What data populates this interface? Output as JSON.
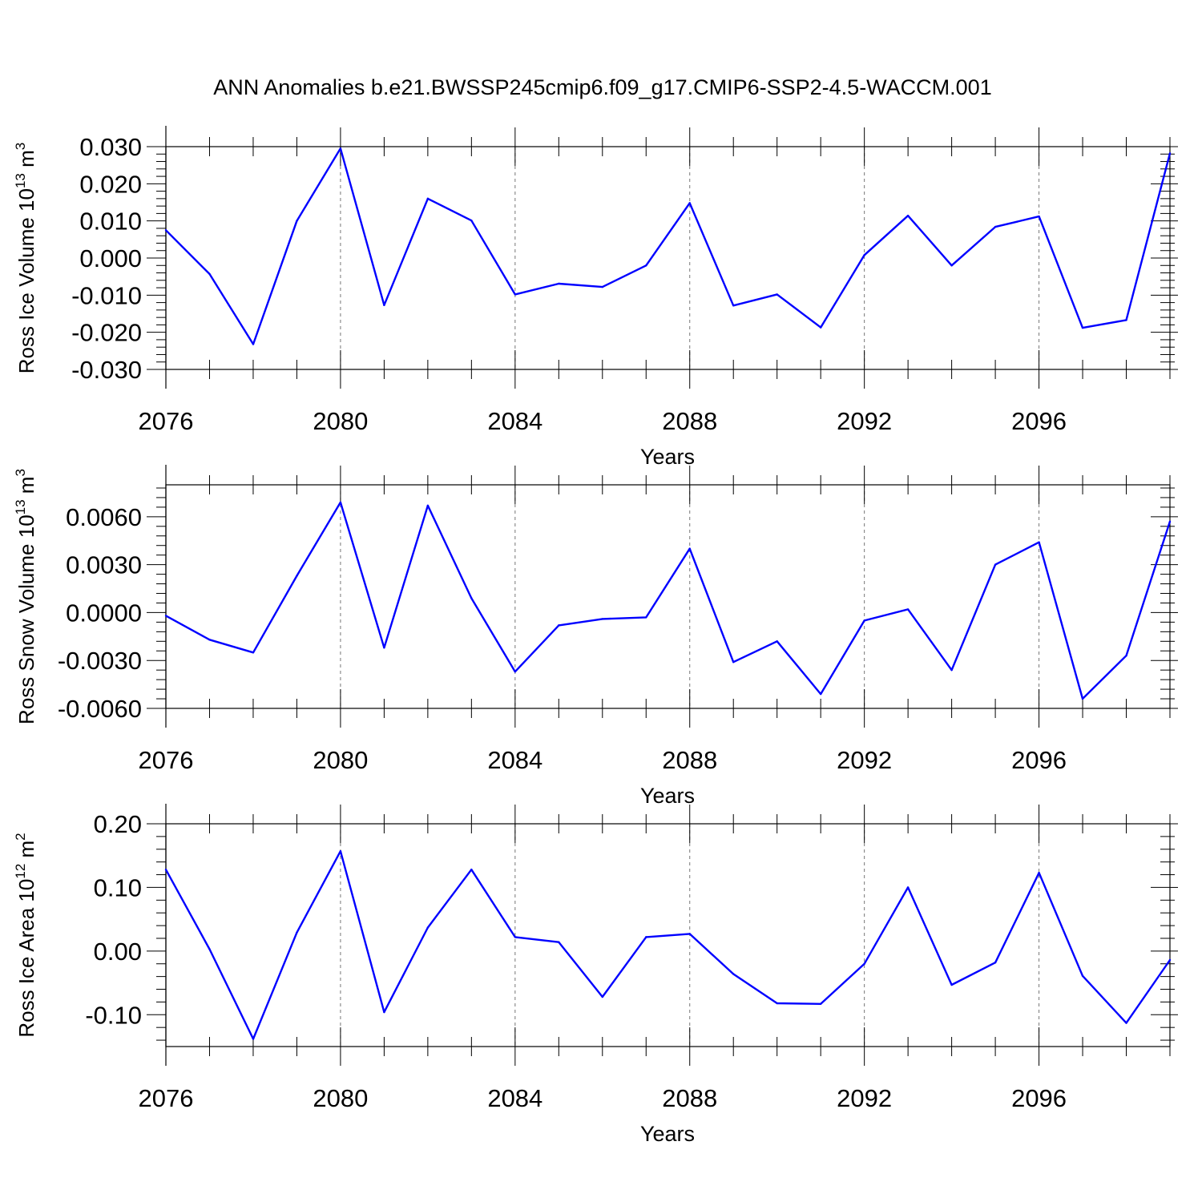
{
  "title": "ANN Anomalies b.e21.BWSSP245cmip6.f09_g17.CMIP6-SSP2-4.5-WACCM.001",
  "line_color": "#0000ff",
  "chart_data": [
    {
      "type": "line",
      "ylabel": {
        "main": "Ross Ice Volume 10",
        "exp": "13",
        "unit": " m",
        "unit_exp": "3"
      },
      "xlabel": "Years",
      "xlim": [
        2076,
        2099
      ],
      "ylim": [
        -0.03,
        0.03
      ],
      "yticks": [
        -0.03,
        -0.02,
        -0.01,
        0.0,
        0.01,
        0.02,
        0.03
      ],
      "ytick_labels": [
        "-0.030",
        "-0.020",
        "-0.010",
        "0.000",
        "0.010",
        "0.020",
        "0.030"
      ],
      "xticks": [
        2076,
        2080,
        2084,
        2088,
        2092,
        2096
      ],
      "xtick_labels": [
        "2076",
        "2080",
        "2084",
        "2088",
        "2092",
        "2096"
      ],
      "x": [
        2076,
        2077,
        2078,
        2079,
        2080,
        2081,
        2082,
        2083,
        2084,
        2085,
        2086,
        2087,
        2088,
        2089,
        2090,
        2091,
        2092,
        2093,
        2094,
        2095,
        2096,
        2097,
        2098,
        2099
      ],
      "values": [
        0.0075,
        -0.0043,
        -0.0232,
        0.01,
        0.0295,
        -0.0127,
        0.016,
        0.0101,
        -0.0098,
        -0.0069,
        -0.0078,
        -0.002,
        0.0148,
        -0.0128,
        -0.0098,
        -0.0187,
        0.0008,
        0.0114,
        -0.002,
        0.0084,
        0.0112,
        -0.0188,
        -0.0167,
        0.0282
      ]
    },
    {
      "type": "line",
      "ylabel": {
        "main": "Ross Snow Volume 10",
        "exp": "13",
        "unit": " m",
        "unit_exp": "3"
      },
      "xlabel": "Years",
      "xlim": [
        2076,
        2099
      ],
      "ylim": [
        -0.006,
        0.008
      ],
      "yticks": [
        -0.006,
        -0.003,
        0.0,
        0.003,
        0.006
      ],
      "ytick_labels": [
        "-0.0060",
        "-0.0030",
        "0.0000",
        "0.0030",
        "0.0060"
      ],
      "xticks": [
        2076,
        2080,
        2084,
        2088,
        2092,
        2096
      ],
      "xtick_labels": [
        "2076",
        "2080",
        "2084",
        "2088",
        "2092",
        "2096"
      ],
      "x": [
        2076,
        2077,
        2078,
        2079,
        2080,
        2081,
        2082,
        2083,
        2084,
        2085,
        2086,
        2087,
        2088,
        2089,
        2090,
        2091,
        2092,
        2093,
        2094,
        2095,
        2096,
        2097,
        2098,
        2099
      ],
      "values": [
        -0.0002,
        -0.0017,
        -0.0025,
        0.0023,
        0.0069,
        -0.0022,
        0.0067,
        0.0009,
        -0.0037,
        -0.0008,
        -0.0004,
        -0.0003,
        0.004,
        -0.0031,
        -0.0018,
        -0.0051,
        -0.0005,
        0.0002,
        -0.0036,
        0.003,
        0.0044,
        -0.0054,
        -0.0027,
        0.0057
      ]
    },
    {
      "type": "line",
      "ylabel": {
        "main": "Ross Ice Area 10",
        "exp": "12",
        "unit": " m",
        "unit_exp": "2"
      },
      "xlabel": "Years",
      "xlim": [
        2076,
        2099
      ],
      "ylim": [
        -0.15,
        0.2
      ],
      "yticks": [
        -0.1,
        0.0,
        0.1,
        0.2
      ],
      "ytick_labels": [
        "-0.10",
        "0.00",
        "0.10",
        "0.20"
      ],
      "xticks": [
        2076,
        2080,
        2084,
        2088,
        2092,
        2096
      ],
      "xtick_labels": [
        "2076",
        "2080",
        "2084",
        "2088",
        "2092",
        "2096"
      ],
      "x": [
        2076,
        2077,
        2078,
        2079,
        2080,
        2081,
        2082,
        2083,
        2084,
        2085,
        2086,
        2087,
        2088,
        2089,
        2090,
        2091,
        2092,
        2093,
        2094,
        2095,
        2096,
        2097,
        2098,
        2099
      ],
      "values": [
        0.128,
        0.003,
        -0.138,
        0.029,
        0.157,
        -0.096,
        0.037,
        0.128,
        0.022,
        0.014,
        -0.072,
        0.022,
        0.027,
        -0.036,
        -0.082,
        -0.083,
        -0.02,
        0.1,
        -0.053,
        -0.018,
        0.123,
        -0.039,
        -0.113,
        -0.014
      ]
    }
  ]
}
